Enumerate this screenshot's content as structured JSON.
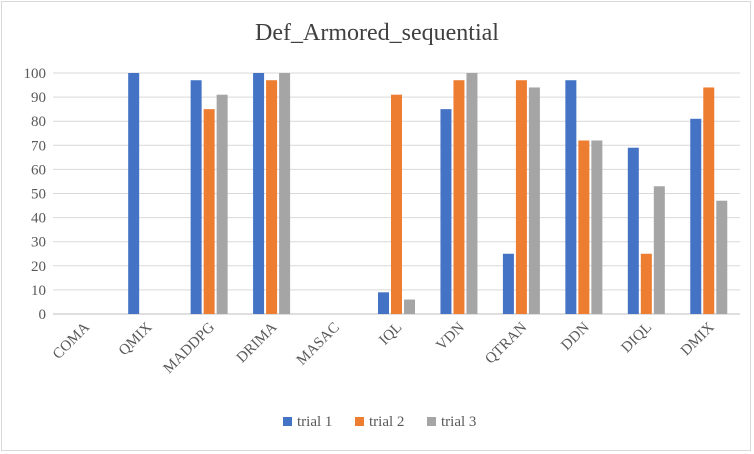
{
  "chart_data": {
    "type": "bar",
    "title": "Def_Armored_sequential",
    "xlabel": "",
    "ylabel": "",
    "ylim": [
      0,
      100
    ],
    "yticks": [
      0,
      10,
      20,
      30,
      40,
      50,
      60,
      70,
      80,
      90,
      100
    ],
    "grid": true,
    "legend_position": "bottom",
    "categories": [
      "COMA",
      "QMIX",
      "MADDPG",
      "DRIMA",
      "MASAC",
      "IQL",
      "VDN",
      "QTRAN",
      "DDN",
      "DIQL",
      "DMIX"
    ],
    "series": [
      {
        "name": "trial 1",
        "color": "#4472C4",
        "values": [
          0,
          100,
          97,
          100,
          0,
          9,
          85,
          25,
          97,
          69,
          81
        ]
      },
      {
        "name": "trial 2",
        "color": "#ED7D31",
        "values": [
          0,
          0,
          85,
          97,
          0,
          91,
          97,
          97,
          72,
          25,
          94
        ]
      },
      {
        "name": "trial 3",
        "color": "#A5A5A5",
        "values": [
          0,
          0,
          91,
          100,
          0,
          6,
          100,
          94,
          72,
          53,
          47
        ]
      }
    ]
  }
}
